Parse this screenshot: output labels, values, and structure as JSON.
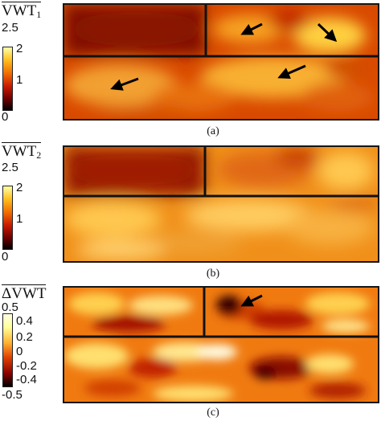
{
  "panels": [
    {
      "title_main": "VWT",
      "title_sub": "1",
      "overline": true,
      "ticks": [
        "2.5",
        "2",
        "1",
        "0"
      ],
      "caption": "(a)",
      "arrows": 4
    },
    {
      "title_main": "VWT",
      "title_sub": "2",
      "overline": true,
      "ticks": [
        "2.5",
        "2",
        "1",
        "0"
      ],
      "caption": "(b)",
      "arrows": 0
    },
    {
      "title_main": "ΔVWT",
      "title_sub": "",
      "overline": true,
      "ticks": [
        "0.5",
        "0.4",
        "0.2",
        "0",
        "-0.2",
        "-0.4",
        "-0.5"
      ],
      "caption": "(c)",
      "arrows": 1
    }
  ],
  "colormap": {
    "sequential": [
      "#000000",
      "#6e0000",
      "#c81a00",
      "#f06a00",
      "#ffc020",
      "#ffffa8"
    ],
    "diverging": [
      "#000000",
      "#8a0000",
      "#e04000",
      "#ffb030",
      "#ffff9a",
      "#ffffe6"
    ]
  }
}
